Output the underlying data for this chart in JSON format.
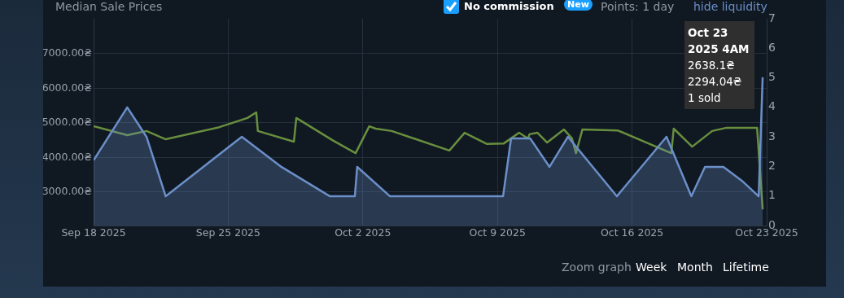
{
  "chart_data": {
    "type": "area",
    "title": "Median Sale Prices",
    "xlim": [
      "2025-09-18",
      "2025-10-23"
    ],
    "xticks": [
      {
        "value": "2025-09-18",
        "label": "Sep 18 2025"
      },
      {
        "value": "2025-09-25",
        "label": "Sep 25 2025"
      },
      {
        "value": "2025-10-02",
        "label": "Oct 2 2025"
      },
      {
        "value": "2025-10-09",
        "label": "Oct 9 2025"
      },
      {
        "value": "2025-10-16",
        "label": "Oct 16 2025"
      },
      {
        "value": "2025-10-23",
        "label": "Oct 23 2025"
      }
    ],
    "ylim": [
      2035,
      8010
    ],
    "yticks": [
      {
        "value": 3000,
        "label": "3000.00₴"
      },
      {
        "value": 4000,
        "label": "4000.00₴"
      },
      {
        "value": 5000,
        "label": "5000.00₴"
      },
      {
        "value": 6000,
        "label": "6000.00₴"
      },
      {
        "value": 7000,
        "label": "7000.00₴"
      }
    ],
    "y2lim": [
      0,
      7
    ],
    "y2ticks": [
      0,
      1,
      2,
      3,
      4,
      5,
      6,
      7
    ],
    "grid": true,
    "legend": false,
    "marker": "none",
    "line_style": "solid",
    "series": [
      {
        "color": "#6b8fc8",
        "x": [
          "2025-09-18",
          "2025-09-19T18:00",
          "2025-09-20T18:00",
          "2025-09-21T18:00",
          "2025-09-25T17:00",
          "2025-09-27T17:00",
          "2025-09-30T07:00",
          "2025-10-01T14:00",
          "2025-10-01T17:00",
          "2025-10-03T10:00",
          "2025-10-09T07:00",
          "2025-10-09T17:00",
          "2025-10-10T17:00",
          "2025-10-11T17:00",
          "2025-10-12T16:00",
          "2025-10-15T05:00",
          "2025-10-17T19:00",
          "2025-10-19T02:00",
          "2025-10-19T19:00",
          "2025-10-20T18:00",
          "2025-10-21T17:00",
          "2025-10-22T14:00",
          "2025-10-22T19:00"
        ],
        "values": [
          3920,
          5450,
          4600,
          2880,
          4600,
          3750,
          2880,
          2880,
          3730,
          2880,
          2880,
          4550,
          4550,
          3730,
          4600,
          2880,
          4600,
          2880,
          3730,
          3730,
          3330,
          2880,
          6320
        ]
      },
      {
        "type": "line",
        "axis": "y2",
        "color": "#688f3e",
        "x": [
          "2025-09-18",
          "2025-09-19T18:00",
          "2025-09-20T18:00",
          "2025-09-21T18:00",
          "2025-09-24T13:00",
          "2025-09-26T00:00",
          "2025-09-26T11:00",
          "2025-09-26T13:00",
          "2025-09-28T10:00",
          "2025-09-28T13:00",
          "2025-09-30T10:00",
          "2025-10-01T15:00",
          "2025-10-02T08:00",
          "2025-10-02T16:00",
          "2025-10-03T12:00",
          "2025-10-06T12:00",
          "2025-10-07T07:00",
          "2025-10-08T11:00",
          "2025-10-09T08:00",
          "2025-10-10T03:00",
          "2025-10-10T14:00",
          "2025-10-10T16:00",
          "2025-10-11T02:00",
          "2025-10-11T14:00",
          "2025-10-12T11:00",
          "2025-10-12T21:00",
          "2025-10-13T02:00",
          "2025-10-13T10:00",
          "2025-10-15T06:00",
          "2025-10-18T01:00",
          "2025-10-18T04:00",
          "2025-10-19T03:00",
          "2025-10-20T04:00",
          "2025-10-20T22:00",
          "2025-10-22T12:00",
          "2025-10-22T19:00"
        ],
        "values": [
          3.36,
          3.06,
          3.2,
          2.92,
          3.33,
          3.64,
          3.83,
          3.2,
          2.84,
          3.64,
          2.89,
          2.45,
          3.36,
          3.28,
          3.2,
          2.54,
          3.14,
          2.76,
          2.78,
          3.14,
          2.95,
          3.09,
          3.14,
          2.81,
          3.25,
          2.95,
          2.45,
          3.25,
          3.22,
          2.45,
          3.28,
          2.67,
          3.2,
          3.31,
          3.31,
          0.55
        ]
      }
    ],
    "annotations": [
      "No commission",
      "New",
      "Points: 1 day",
      "hide liquidity",
      "Oct 23 2025 4AM",
      "2638.1₴",
      "2294.04₴",
      "1 sold",
      "Zoom graph",
      "Week",
      "Month",
      "Lifetime"
    ]
  }
}
